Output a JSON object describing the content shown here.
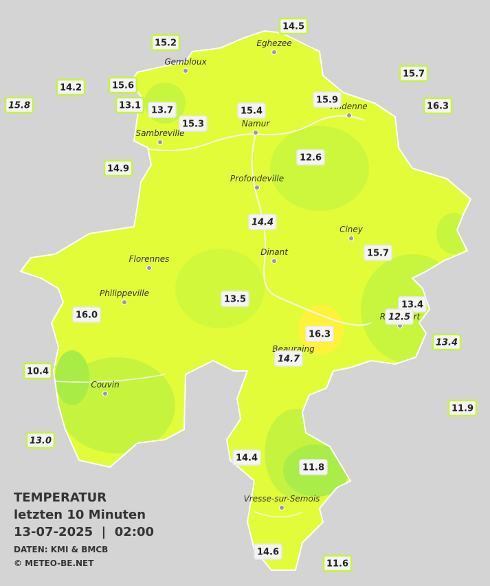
{
  "legend": {
    "title": "TEMPERATUR",
    "subtitle": "letzten 10 Minuten",
    "datetime": "13-07-2025  |  02:00",
    "source": "DATEN: KMI & BMCB",
    "copyright": "© METEO-BE.NET"
  },
  "cities": [
    "Eghezee",
    "Gembloux",
    "Andenne",
    "Namur",
    "Sambreville",
    "Profondeville",
    "Ciney",
    "Dinant",
    "Florennes",
    "Philippeville",
    "Couvin",
    "Vresse-sur-Semois",
    "Beauraing",
    "Rochefort"
  ],
  "stations": [
    "14.5",
    "15.2",
    "15.7",
    "14.2",
    "15.6",
    "15.8",
    "13.1",
    "13.7",
    "15.9",
    "15.4",
    "16.3",
    "15.3",
    "12.6",
    "14.9",
    "14.4",
    "15.7",
    "13.5",
    "13.4",
    "12.5",
    "16.0",
    "16.3",
    "13.4",
    "14.7",
    "10.4",
    "11.9",
    "13.0",
    "14.4",
    "11.8",
    "14.6",
    "11.6"
  ]
}
